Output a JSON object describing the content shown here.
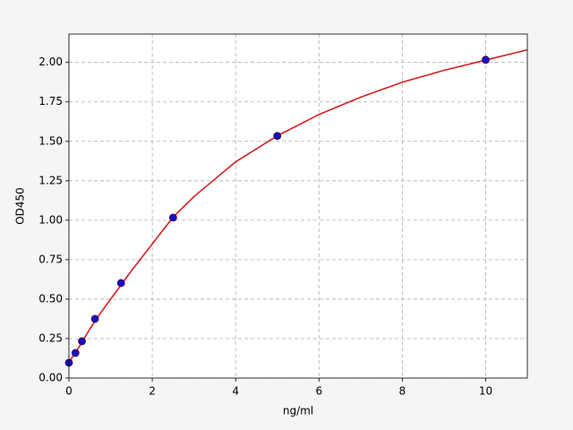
{
  "chart_data": {
    "type": "scatter",
    "xlabel": "ng/ml",
    "ylabel": "OD450",
    "xlim": [
      0,
      11
    ],
    "ylim": [
      0,
      2.18
    ],
    "xticks": [
      0,
      2,
      4,
      6,
      8,
      10
    ],
    "yticks": [
      {
        "value": 0,
        "label": "0.00"
      },
      {
        "value": 0.25,
        "label": "0.25"
      },
      {
        "value": 0.5,
        "label": "0.50"
      },
      {
        "value": 0.75,
        "label": "0.75"
      },
      {
        "value": 1,
        "label": "1.00"
      },
      {
        "value": 1.25,
        "label": "1.25"
      },
      {
        "value": 1.5,
        "label": "1.50"
      },
      {
        "value": 1.75,
        "label": "1.75"
      },
      {
        "value": 2,
        "label": "2.00"
      }
    ],
    "grid": true,
    "points": {
      "color": "#1010cc",
      "x": [
        0,
        0.156,
        0.312,
        0.625,
        1.25,
        2.5,
        5,
        10
      ],
      "y": [
        0.097,
        0.159,
        0.233,
        0.375,
        0.602,
        1.017,
        1.534,
        2.017
      ]
    },
    "curve": {
      "color": "#d42020",
      "x": [
        0,
        0.25,
        0.5,
        0.75,
        1,
        1.5,
        2,
        2.5,
        3,
        4,
        5,
        6,
        7,
        8,
        9,
        10,
        11
      ],
      "y": [
        0.1,
        0.2,
        0.31,
        0.41,
        0.5,
        0.68,
        0.85,
        1.02,
        1.15,
        1.37,
        1.535,
        1.67,
        1.78,
        1.875,
        1.95,
        2.015,
        2.08
      ]
    }
  }
}
